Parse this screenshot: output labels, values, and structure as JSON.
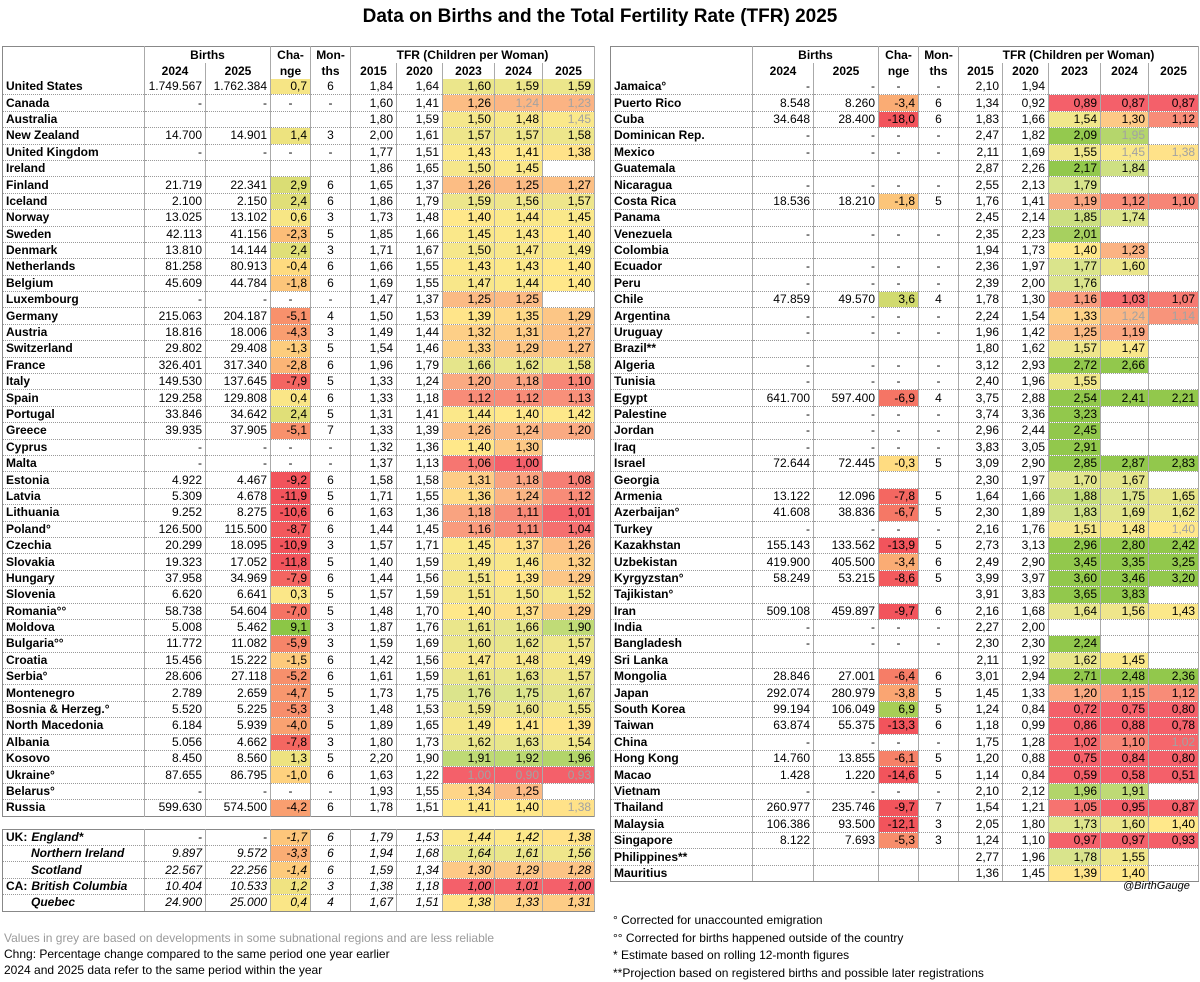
{
  "title": "Data on Births and the Total Fertility Rate (TFR) 2025",
  "headers": {
    "births": "Births",
    "change1": "Cha-",
    "change2": "nge",
    "months1": "Mon-",
    "months2": "ths",
    "tfr": "TFR (Children per Woman)",
    "y2024": "2024",
    "y2025": "2025",
    "tfr_years": [
      "2015",
      "2020",
      "2023",
      "2024",
      "2025"
    ]
  },
  "left_rows": [
    [
      "United States",
      "1.749.567",
      "1.762.384",
      "0,7",
      "6",
      "1,84",
      "1,64",
      "1,60",
      "1,59",
      "1,59"
    ],
    [
      "Canada",
      "-",
      "-",
      "-",
      "-",
      "1,60",
      "1,41",
      "1,26",
      "1,24",
      "1,23"
    ],
    [
      "Australia",
      "",
      "",
      "",
      "",
      "1,80",
      "1,59",
      "1,50",
      "1,48",
      "1,45"
    ],
    [
      "New Zealand",
      "14.700",
      "14.901",
      "1,4",
      "3",
      "2,00",
      "1,61",
      "1,57",
      "1,57",
      "1,58"
    ],
    [
      "United Kingdom",
      "-",
      "-",
      "-",
      "-",
      "1,77",
      "1,51",
      "1,43",
      "1,41",
      "1,38"
    ],
    [
      "Ireland",
      "",
      "",
      "",
      "",
      "1,86",
      "1,65",
      "1,50",
      "1,45",
      ""
    ],
    [
      "Finland",
      "21.719",
      "22.341",
      "2,9",
      "6",
      "1,65",
      "1,37",
      "1,26",
      "1,25",
      "1,27"
    ],
    [
      "Iceland",
      "2.100",
      "2.150",
      "2,4",
      "6",
      "1,86",
      "1,79",
      "1,59",
      "1,56",
      "1,57"
    ],
    [
      "Norway",
      "13.025",
      "13.102",
      "0,6",
      "3",
      "1,73",
      "1,48",
      "1,40",
      "1,44",
      "1,45"
    ],
    [
      "Sweden",
      "42.113",
      "41.156",
      "-2,3",
      "5",
      "1,85",
      "1,66",
      "1,45",
      "1,43",
      "1,40"
    ],
    [
      "Denmark",
      "13.810",
      "14.144",
      "2,4",
      "3",
      "1,71",
      "1,67",
      "1,50",
      "1,47",
      "1,49"
    ],
    [
      "Netherlands",
      "81.258",
      "80.913",
      "-0,4",
      "6",
      "1,66",
      "1,55",
      "1,43",
      "1,43",
      "1,40"
    ],
    [
      "Belgium",
      "45.609",
      "44.784",
      "-1,8",
      "6",
      "1,69",
      "1,55",
      "1,47",
      "1,44",
      "1,40"
    ],
    [
      "Luxembourg",
      "-",
      "-",
      "-",
      "-",
      "1,47",
      "1,37",
      "1,25",
      "1,25",
      ""
    ],
    [
      "Germany",
      "215.063",
      "204.187",
      "-5,1",
      "4",
      "1,50",
      "1,53",
      "1,39",
      "1,35",
      "1,29"
    ],
    [
      "Austria",
      "18.816",
      "18.006",
      "-4,3",
      "3",
      "1,49",
      "1,44",
      "1,32",
      "1,31",
      "1,27"
    ],
    [
      "Switzerland",
      "29.802",
      "29.408",
      "-1,3",
      "5",
      "1,54",
      "1,46",
      "1,33",
      "1,29",
      "1,27"
    ],
    [
      "France",
      "326.401",
      "317.340",
      "-2,8",
      "6",
      "1,96",
      "1,79",
      "1,66",
      "1,62",
      "1,58"
    ],
    [
      "Italy",
      "149.530",
      "137.645",
      "-7,9",
      "5",
      "1,33",
      "1,24",
      "1,20",
      "1,18",
      "1,10"
    ],
    [
      "Spain",
      "129.258",
      "129.808",
      "0,4",
      "6",
      "1,33",
      "1,18",
      "1,12",
      "1,12",
      "1,13"
    ],
    [
      "Portugal",
      "33.846",
      "34.642",
      "2,4",
      "5",
      "1,31",
      "1,41",
      "1,44",
      "1,40",
      "1,42"
    ],
    [
      "Greece",
      "39.935",
      "37.905",
      "-5,1",
      "7",
      "1,33",
      "1,39",
      "1,26",
      "1,24",
      "1,20"
    ],
    [
      "Cyprus",
      "-",
      "-",
      "-",
      "-",
      "1,32",
      "1,36",
      "1,40",
      "1,30",
      ""
    ],
    [
      "Malta",
      "-",
      "-",
      "-",
      "-",
      "1,37",
      "1,13",
      "1,06",
      "1,00",
      ""
    ],
    [
      "Estonia",
      "4.922",
      "4.467",
      "-9,2",
      "6",
      "1,58",
      "1,58",
      "1,31",
      "1,18",
      "1,08"
    ],
    [
      "Latvia",
      "5.309",
      "4.678",
      "-11,9",
      "5",
      "1,71",
      "1,55",
      "1,36",
      "1,24",
      "1,12"
    ],
    [
      "Lithuania",
      "9.252",
      "8.275",
      "-10,6",
      "6",
      "1,63",
      "1,36",
      "1,18",
      "1,11",
      "1,01"
    ],
    [
      "Poland°",
      "126.500",
      "115.500",
      "-8,7",
      "6",
      "1,44",
      "1,45",
      "1,16",
      "1,11",
      "1,04"
    ],
    [
      "Czechia",
      "20.299",
      "18.095",
      "-10,9",
      "3",
      "1,57",
      "1,71",
      "1,45",
      "1,37",
      "1,26"
    ],
    [
      "Slovakia",
      "19.323",
      "17.052",
      "-11,8",
      "5",
      "1,40",
      "1,59",
      "1,49",
      "1,46",
      "1,32"
    ],
    [
      "Hungary",
      "37.958",
      "34.969",
      "-7,9",
      "6",
      "1,44",
      "1,56",
      "1,51",
      "1,39",
      "1,29"
    ],
    [
      "Slovenia",
      "6.620",
      "6.641",
      "0,3",
      "5",
      "1,57",
      "1,59",
      "1,51",
      "1,50",
      "1,52"
    ],
    [
      "Romania°°",
      "58.738",
      "54.604",
      "-7,0",
      "5",
      "1,48",
      "1,70",
      "1,40",
      "1,37",
      "1,29"
    ],
    [
      "Moldova",
      "5.008",
      "5.462",
      "9,1",
      "3",
      "1,87",
      "1,76",
      "1,61",
      "1,66",
      "1,90"
    ],
    [
      "Bulgaria°°",
      "11.772",
      "11.082",
      "-5,9",
      "3",
      "1,59",
      "1,69",
      "1,60",
      "1,62",
      "1,57"
    ],
    [
      "Croatia",
      "15.456",
      "15.222",
      "-1,5",
      "6",
      "1,42",
      "1,56",
      "1,47",
      "1,48",
      "1,49"
    ],
    [
      "Serbia°",
      "28.606",
      "27.118",
      "-5,2",
      "6",
      "1,61",
      "1,59",
      "1,61",
      "1,63",
      "1,57"
    ],
    [
      "Montenegro",
      "2.789",
      "2.659",
      "-4,7",
      "5",
      "1,73",
      "1,75",
      "1,76",
      "1,75",
      "1,67"
    ],
    [
      "Bosnia & Herzeg.°",
      "5.520",
      "5.225",
      "-5,3",
      "3",
      "1,48",
      "1,53",
      "1,59",
      "1,60",
      "1,55"
    ],
    [
      "North Macedonia",
      "6.184",
      "5.939",
      "-4,0",
      "5",
      "1,89",
      "1,65",
      "1,49",
      "1,41",
      "1,39"
    ],
    [
      "Albania",
      "5.056",
      "4.662",
      "-7,8",
      "3",
      "1,80",
      "1,73",
      "1,62",
      "1,63",
      "1,54"
    ],
    [
      "Kosovo",
      "8.450",
      "8.560",
      "1,3",
      "5",
      "2,20",
      "1,90",
      "1,91",
      "1,92",
      "1,96"
    ],
    [
      "Ukraine°",
      "87.655",
      "86.795",
      "-1,0",
      "6",
      "1,63",
      "1,22",
      "1,00",
      "0,90",
      "0,93"
    ],
    [
      "Belarus°",
      "-",
      "-",
      "-",
      "-",
      "1,93",
      "1,55",
      "1,34",
      "1,25",
      ""
    ],
    [
      "Russia",
      "599.630",
      "574.500",
      "-4,2",
      "6",
      "1,78",
      "1,51",
      "1,41",
      "1,40",
      "1,38"
    ]
  ],
  "sub_rows": [
    [
      "UK:",
      "England*",
      "-",
      "-",
      "-1,7",
      "6",
      "1,79",
      "1,53",
      "1,44",
      "1,42",
      "1,38"
    ],
    [
      "",
      "Northern Ireland",
      "9.897",
      "9.572",
      "-3,3",
      "6",
      "1,94",
      "1,68",
      "1,64",
      "1,61",
      "1,56"
    ],
    [
      "",
      "Scotland",
      "22.567",
      "22.256",
      "-1,4",
      "6",
      "1,59",
      "1,34",
      "1,30",
      "1,29",
      "1,28"
    ],
    [
      "CA:",
      "British Columbia",
      "10.404",
      "10.533",
      "1,2",
      "3",
      "1,38",
      "1,18",
      "1,00",
      "1,01",
      "1,00"
    ],
    [
      "",
      "Quebec",
      "24.900",
      "25.000",
      "0,4",
      "4",
      "1,67",
      "1,51",
      "1,38",
      "1,33",
      "1,31"
    ]
  ],
  "right_rows": [
    [
      "Jamaica°",
      "-",
      "-",
      "-",
      "-",
      "2,10",
      "1,94",
      "",
      "",
      ""
    ],
    [
      "Puerto Rico",
      "8.548",
      "8.260",
      "-3,4",
      "6",
      "1,34",
      "0,92",
      "0,89",
      "0,87",
      "0,87"
    ],
    [
      "Cuba",
      "34.648",
      "28.400",
      "-18,0",
      "6",
      "1,83",
      "1,66",
      "1,54",
      "1,30",
      "1,12"
    ],
    [
      "Dominican Rep.",
      "-",
      "-",
      "-",
      "-",
      "2,47",
      "1,82",
      "2,09",
      "1,95",
      ""
    ],
    [
      "Mexico",
      "-",
      "-",
      "-",
      "-",
      "2,11",
      "1,69",
      "1,55",
      "1,45",
      "1,38"
    ],
    [
      "Guatemala",
      "",
      "",
      "",
      "",
      "2,87",
      "2,26",
      "2,17",
      "1,84",
      ""
    ],
    [
      "Nicaragua",
      "-",
      "-",
      "-",
      "-",
      "2,55",
      "2,13",
      "1,79",
      "",
      ""
    ],
    [
      "Costa Rica",
      "18.536",
      "18.210",
      "-1,8",
      "5",
      "1,76",
      "1,41",
      "1,19",
      "1,12",
      "1,10"
    ],
    [
      "Panama",
      "",
      "",
      "",
      "",
      "2,45",
      "2,14",
      "1,85",
      "1,74",
      ""
    ],
    [
      "Venezuela",
      "-",
      "-",
      "-",
      "-",
      "2,35",
      "2,23",
      "2,01",
      "",
      ""
    ],
    [
      "Colombia",
      "",
      "",
      "",
      "",
      "1,94",
      "1,73",
      "1,40",
      "1,23",
      ""
    ],
    [
      "Ecuador",
      "-",
      "-",
      "-",
      "-",
      "2,36",
      "1,97",
      "1,77",
      "1,60",
      ""
    ],
    [
      "Peru",
      "-",
      "-",
      "-",
      "-",
      "2,39",
      "2,00",
      "1,76",
      "",
      ""
    ],
    [
      "Chile",
      "47.859",
      "49.570",
      "3,6",
      "4",
      "1,78",
      "1,30",
      "1,16",
      "1,03",
      "1,07"
    ],
    [
      "Argentina",
      "-",
      "-",
      "-",
      "-",
      "2,24",
      "1,54",
      "1,33",
      "1,24",
      "1,14"
    ],
    [
      "Uruguay",
      "-",
      "-",
      "-",
      "-",
      "1,96",
      "1,42",
      "1,25",
      "1,19",
      ""
    ],
    [
      "Brazil**",
      "",
      "",
      "",
      "",
      "1,80",
      "1,62",
      "1,57",
      "1,47",
      ""
    ],
    [
      "Algeria",
      "-",
      "-",
      "-",
      "-",
      "3,12",
      "2,93",
      "2,72",
      "2,66",
      ""
    ],
    [
      "Tunisia",
      "-",
      "-",
      "-",
      "-",
      "2,40",
      "1,96",
      "1,55",
      "",
      ""
    ],
    [
      "Egypt",
      "641.700",
      "597.400",
      "-6,9",
      "4",
      "3,75",
      "2,88",
      "2,54",
      "2,41",
      "2,21"
    ],
    [
      "Palestine",
      "-",
      "-",
      "-",
      "-",
      "3,74",
      "3,36",
      "3,23",
      "",
      ""
    ],
    [
      "Jordan",
      "-",
      "-",
      "-",
      "-",
      "2,96",
      "2,44",
      "2,45",
      "",
      ""
    ],
    [
      "Iraq",
      "-",
      "-",
      "-",
      "-",
      "3,83",
      "3,05",
      "2,91",
      "",
      ""
    ],
    [
      "Israel",
      "72.644",
      "72.445",
      "-0,3",
      "5",
      "3,09",
      "2,90",
      "2,85",
      "2,87",
      "2,83"
    ],
    [
      "Georgia",
      "",
      "",
      "",
      "",
      "2,30",
      "1,97",
      "1,70",
      "1,67",
      ""
    ],
    [
      "Armenia",
      "13.122",
      "12.096",
      "-7,8",
      "5",
      "1,64",
      "1,66",
      "1,88",
      "1,75",
      "1,65"
    ],
    [
      "Azerbaijan°",
      "41.608",
      "38.836",
      "-6,7",
      "5",
      "2,30",
      "1,89",
      "1,83",
      "1,69",
      "1,62"
    ],
    [
      "Turkey",
      "-",
      "-",
      "-",
      "-",
      "2,16",
      "1,76",
      "1,51",
      "1,48",
      "1,40"
    ],
    [
      "Kazakhstan",
      "155.143",
      "133.562",
      "-13,9",
      "5",
      "2,73",
      "3,13",
      "2,96",
      "2,80",
      "2,42"
    ],
    [
      "Uzbekistan",
      "419.900",
      "405.500",
      "-3,4",
      "6",
      "2,49",
      "2,90",
      "3,45",
      "3,35",
      "3,25"
    ],
    [
      "Kyrgyzstan°",
      "58.249",
      "53.215",
      "-8,6",
      "5",
      "3,99",
      "3,97",
      "3,60",
      "3,46",
      "3,20"
    ],
    [
      "Tajikistan°",
      "",
      "",
      "",
      "",
      "3,91",
      "3,83",
      "3,65",
      "3,83",
      ""
    ],
    [
      "Iran",
      "509.108",
      "459.897",
      "-9,7",
      "6",
      "2,16",
      "1,68",
      "1,64",
      "1,56",
      "1,43"
    ],
    [
      "India",
      "-",
      "-",
      "-",
      "-",
      "2,27",
      "2,00",
      "",
      "",
      ""
    ],
    [
      "Bangladesh",
      "-",
      "-",
      "-",
      "-",
      "2,30",
      "2,30",
      "2,24",
      "",
      ""
    ],
    [
      "Sri Lanka",
      "",
      "",
      "",
      "",
      "2,11",
      "1,92",
      "1,62",
      "1,45",
      ""
    ],
    [
      "Mongolia",
      "28.846",
      "27.001",
      "-6,4",
      "6",
      "3,01",
      "2,94",
      "2,71",
      "2,48",
      "2,36"
    ],
    [
      "Japan",
      "292.074",
      "280.979",
      "-3,8",
      "5",
      "1,45",
      "1,33",
      "1,20",
      "1,15",
      "1,12"
    ],
    [
      "South Korea",
      "99.194",
      "106.049",
      "6,9",
      "5",
      "1,24",
      "0,84",
      "0,72",
      "0,75",
      "0,80"
    ],
    [
      "Taiwan",
      "63.874",
      "55.375",
      "-13,3",
      "6",
      "1,18",
      "0,99",
      "0,86",
      "0,88",
      "0,78"
    ],
    [
      "China",
      "-",
      "-",
      "-",
      "-",
      "1,75",
      "1,28",
      "1,02",
      "1,10",
      "1,02"
    ],
    [
      "Hong Kong",
      "14.760",
      "13.855",
      "-6,1",
      "5",
      "1,20",
      "0,88",
      "0,75",
      "0,84",
      "0,80"
    ],
    [
      "Macao",
      "1.428",
      "1.220",
      "-14,6",
      "5",
      "1,14",
      "0,84",
      "0,59",
      "0,58",
      "0,51"
    ],
    [
      "Vietnam",
      "-",
      "-",
      "-",
      "-",
      "2,10",
      "2,12",
      "1,96",
      "1,91",
      ""
    ],
    [
      "Thailand",
      "260.977",
      "235.746",
      "-9,7",
      "7",
      "1,54",
      "1,21",
      "1,05",
      "0,95",
      "0,87"
    ],
    [
      "Malaysia",
      "106.386",
      "93.500",
      "-12,1",
      "3",
      "2,05",
      "1,80",
      "1,73",
      "1,60",
      "1,40"
    ],
    [
      "Singapore",
      "8.122",
      "7.693",
      "-5,3",
      "3",
      "1,24",
      "1,10",
      "0,97",
      "0,97",
      "0,93"
    ],
    [
      "Philippines**",
      "",
      "",
      "",
      "",
      "2,77",
      "1,96",
      "1,78",
      "1,55",
      ""
    ],
    [
      "Mauritius",
      "",
      "",
      "",
      "",
      "1,36",
      "1,45",
      "1,39",
      "1,40",
      ""
    ]
  ],
  "grey_cells": [
    "Canada-2024",
    "Canada-2025",
    "Australia-2025",
    "Ukraine°-2023",
    "Ukraine°-2024",
    "Ukraine°-2025",
    "Russia-2025",
    "Dominican Rep.-2024",
    "Mexico-2024",
    "Mexico-2025",
    "Argentina-2024",
    "Argentina-2025",
    "Turkey-2025",
    "China-2025"
  ],
  "handle": "@BirthGauge",
  "notes_left": [
    "Values in grey are based on developments in some subnational regions and are less reliable",
    "Chng: Percentage change compared to the same period one year earlier",
    "2024 and 2025 data refer to the same period within the year"
  ],
  "notes_right": [
    "° Corrected for unaccounted emigration",
    "°° Corrected for births happened outside of the country",
    "* Estimate based on rolling 12-month figures",
    "**Projection based on registered births and possible later registrations"
  ],
  "colors": {
    "green_strong": "#92c84c",
    "yellow": "#ffe88a",
    "red_strong": "#f4606a",
    "grey_text": "#a2a2a2"
  }
}
